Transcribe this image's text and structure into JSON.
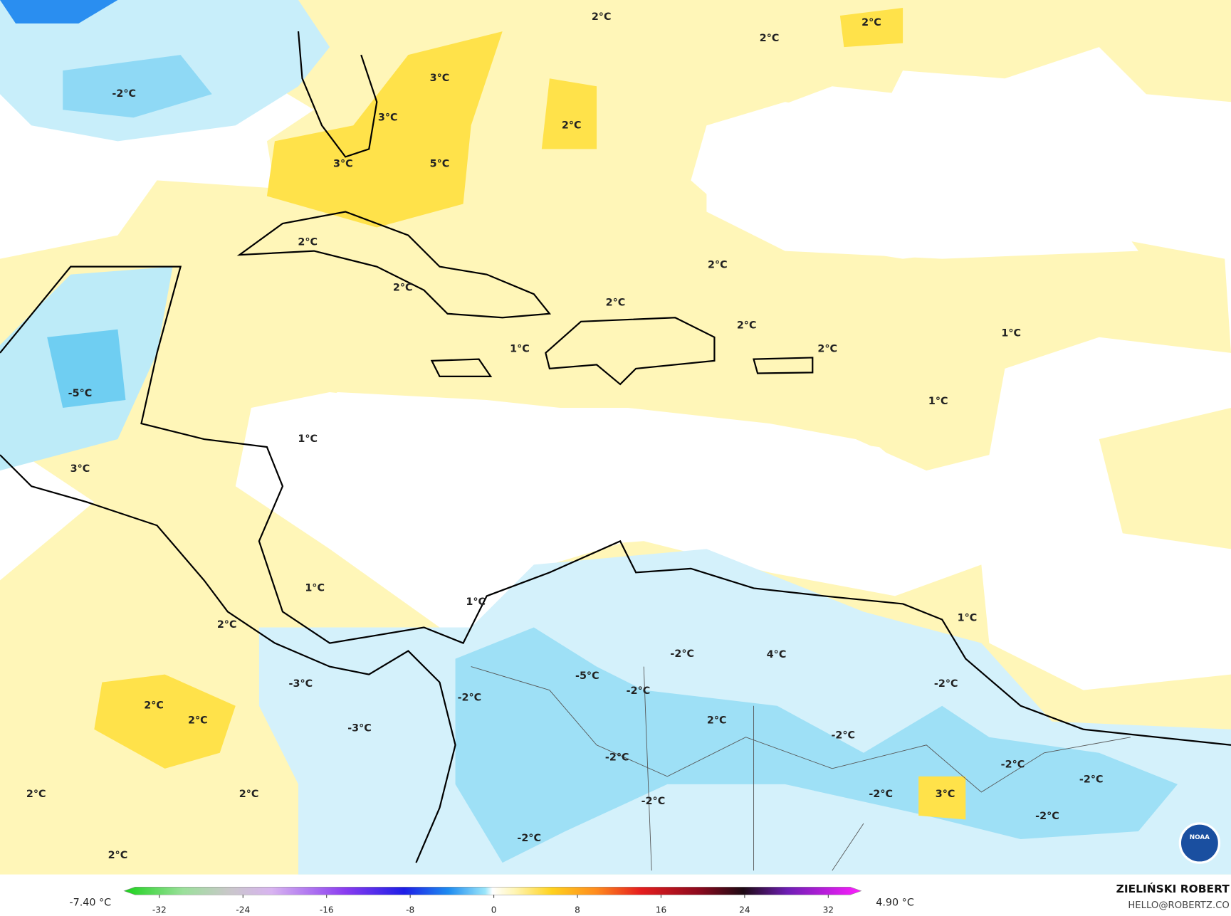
{
  "map_labels": [
    "2°C",
    "2°C",
    "2°C",
    "-2°C",
    "3°C",
    "3°C",
    "2°C",
    "3°C",
    "5°C",
    "2°C",
    "2°C",
    "2°C",
    "2°C",
    "2°C",
    "1°C",
    "2°C",
    "1°C",
    "-5°C",
    "1°C",
    "1°C",
    "3°C",
    "1°C",
    "1°C",
    "2°C",
    "1°C",
    "4°C",
    "-2°C",
    "-5°C",
    "-3°C",
    "-2°C",
    "-2°C",
    "-2°C",
    "2°C",
    "2°C",
    "2°C",
    "-3°C",
    "-2°C",
    "-2°C",
    "-2°C",
    "-2°C",
    "2°C",
    "2°C",
    "-2°C",
    "-2°C",
    "3°C",
    "-2°C",
    "-2°C",
    "2°C"
  ],
  "colorbar": {
    "min_label": "-7.40 °C",
    "max_label": "4.90 °C",
    "ticks": [
      -32,
      -24,
      -16,
      -8,
      0,
      8,
      16,
      24,
      32
    ]
  },
  "credit": {
    "name": "ZIELIŃSKI ROBERT",
    "site": "HELLO@ROBERTZ.CO"
  },
  "logo": "NOAA"
}
